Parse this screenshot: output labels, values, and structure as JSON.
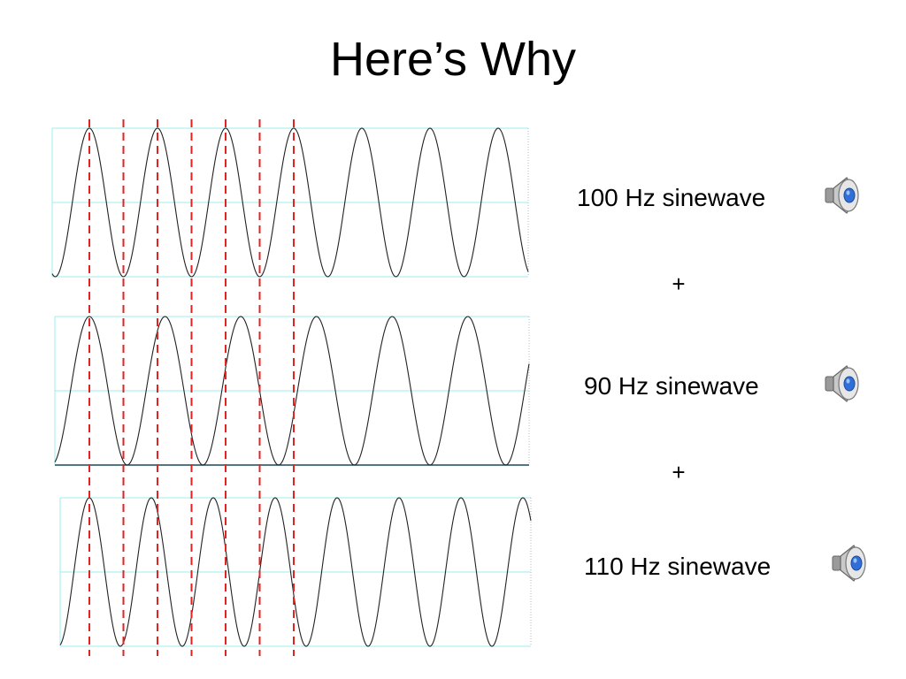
{
  "slide": {
    "title": "Here’s Why",
    "operators": [
      "+",
      "+"
    ]
  },
  "signals": [
    {
      "label": "100 Hz sinewave",
      "frequency_hz": 100,
      "icon": "speaker-icon"
    },
    {
      "label": "90 Hz sinewave",
      "frequency_hz": 90,
      "icon": "speaker-icon"
    },
    {
      "label": "110 Hz sinewave",
      "frequency_hz": 110,
      "icon": "speaker-icon"
    }
  ],
  "colors": {
    "wave": "#222222",
    "grid": "#9feeee",
    "marker": "#e32222",
    "speaker_body": "#9a9a9a",
    "speaker_cone": "#2f6fd6"
  }
}
